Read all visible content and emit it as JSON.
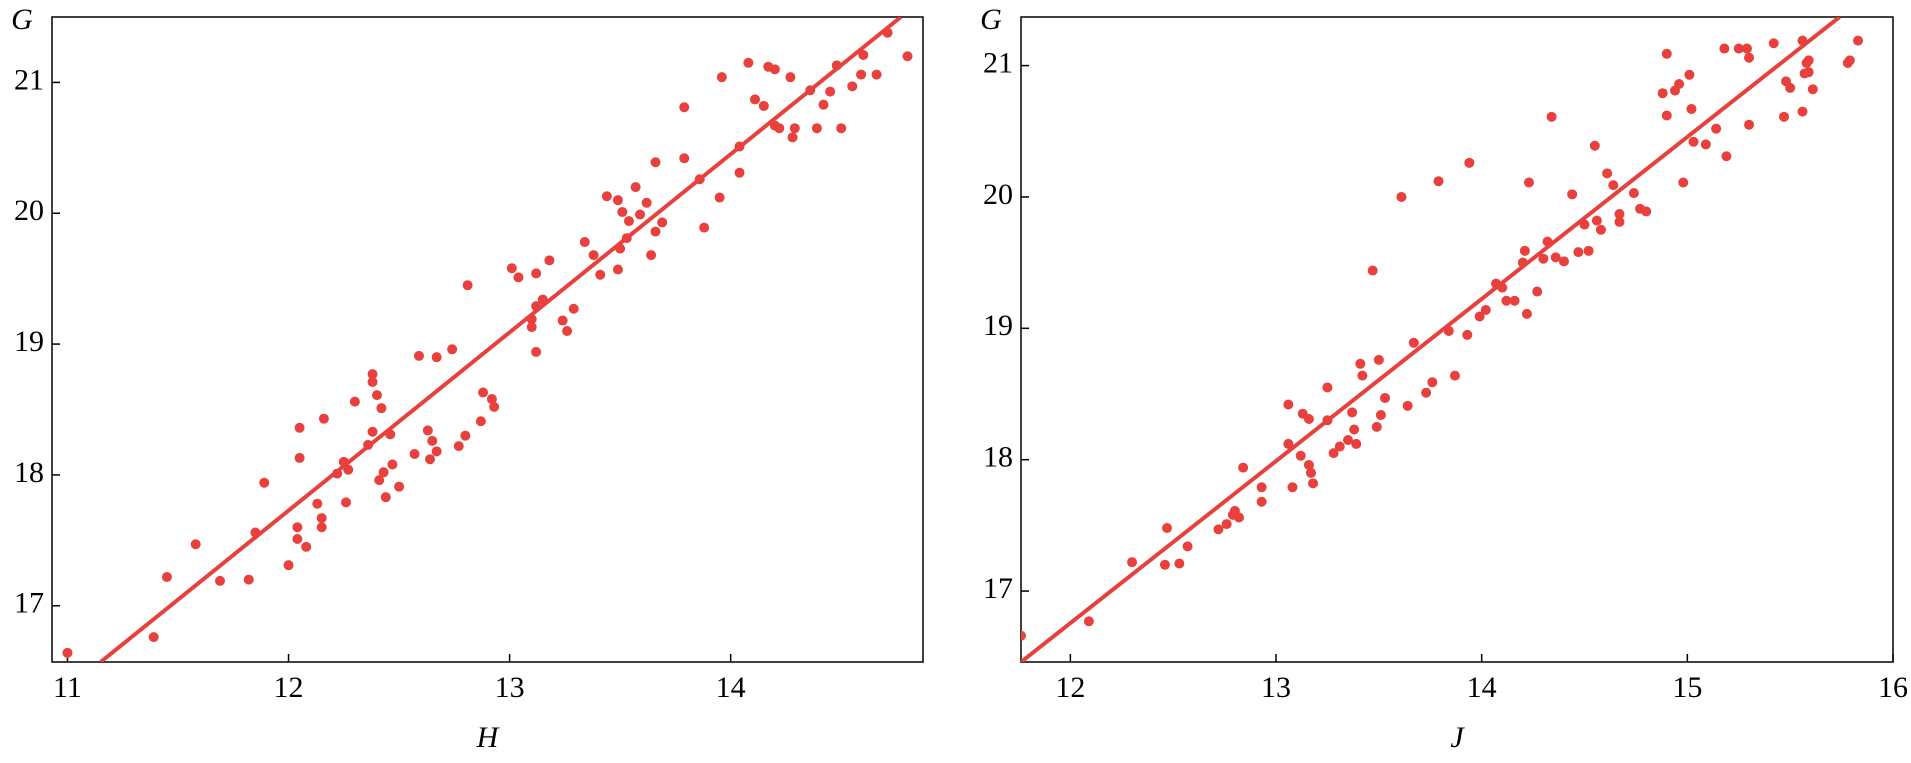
{
  "chart_data": [
    {
      "type": "scatter",
      "xlabel": "H",
      "ylabel": "G",
      "color": "#e8403c",
      "xlim": [
        10.93,
        14.87
      ],
      "ylim": [
        16.57,
        21.5
      ],
      "xticks": [
        11,
        12,
        13,
        14
      ],
      "yticks": [
        17,
        18,
        19,
        20,
        21
      ],
      "x": [
        11.0,
        11.39,
        11.45,
        11.58,
        11.69,
        11.82,
        11.85,
        11.89,
        12.0,
        12.04,
        12.04,
        12.05,
        12.05,
        12.08,
        12.13,
        12.15,
        12.15,
        12.16,
        12.22,
        12.25,
        12.26,
        12.27,
        12.3,
        12.36,
        12.38,
        12.38,
        12.38,
        12.4,
        12.41,
        12.42,
        12.43,
        12.44,
        12.46,
        12.47,
        12.5,
        12.57,
        12.59,
        12.63,
        12.64,
        12.65,
        12.67,
        12.67,
        12.74,
        12.77,
        12.8,
        12.81,
        12.87,
        12.88,
        12.92,
        12.93,
        13.01,
        13.04,
        13.1,
        13.1,
        13.12,
        13.12,
        13.12,
        13.15,
        13.18,
        13.24,
        13.26,
        13.29,
        13.34,
        13.38,
        13.41,
        13.44,
        13.49,
        13.49,
        13.5,
        13.51,
        13.53,
        13.54,
        13.57,
        13.59,
        13.62,
        13.64,
        13.66,
        13.66,
        13.69,
        13.79,
        13.79,
        13.86,
        13.88,
        13.95,
        13.96,
        14.04,
        14.04,
        14.08,
        14.11,
        14.15,
        14.17,
        14.2,
        14.2,
        14.22,
        14.27,
        14.28,
        14.29,
        14.36,
        14.39,
        14.42,
        14.45,
        14.48,
        14.5,
        14.55,
        14.59,
        14.6,
        14.66,
        14.71,
        14.8
      ],
      "values": [
        16.64,
        16.76,
        17.22,
        17.47,
        17.19,
        17.2,
        17.56,
        17.94,
        17.31,
        17.6,
        17.51,
        18.36,
        18.13,
        17.45,
        17.78,
        17.67,
        17.6,
        18.43,
        18.01,
        18.1,
        17.79,
        18.04,
        18.56,
        18.23,
        18.77,
        18.71,
        18.33,
        18.61,
        17.96,
        18.51,
        18.02,
        17.83,
        18.31,
        18.08,
        17.91,
        18.16,
        18.91,
        18.34,
        18.12,
        18.26,
        18.18,
        18.9,
        18.96,
        18.22,
        18.3,
        19.45,
        18.41,
        18.63,
        18.58,
        18.52,
        19.58,
        19.51,
        19.19,
        19.13,
        19.54,
        19.29,
        18.94,
        19.34,
        19.64,
        19.18,
        19.1,
        19.27,
        19.78,
        19.68,
        19.53,
        20.13,
        20.1,
        19.57,
        19.73,
        20.01,
        19.81,
        19.94,
        20.2,
        19.99,
        20.08,
        19.68,
        20.39,
        19.86,
        19.93,
        20.81,
        20.42,
        20.26,
        19.89,
        20.12,
        21.04,
        20.51,
        20.31,
        21.15,
        20.87,
        20.82,
        21.12,
        21.1,
        20.67,
        20.65,
        21.04,
        20.58,
        20.65,
        20.94,
        20.65,
        20.83,
        20.93,
        21.13,
        20.65,
        20.97,
        21.06,
        21.21,
        21.06,
        21.38,
        21.2
      ],
      "fit": {
        "x": [
          11.15,
          14.77
        ],
        "values": [
          16.57,
          21.5
        ]
      }
    },
    {
      "type": "scatter",
      "xlabel": "J",
      "ylabel": "G",
      "color": "#e8403c",
      "xlim": [
        11.76,
        16.0
      ],
      "ylim": [
        16.46,
        21.37
      ],
      "xticks": [
        12,
        13,
        14,
        15,
        16
      ],
      "yticks": [
        17,
        18,
        19,
        20,
        21
      ],
      "x": [
        11.76,
        12.09,
        12.3,
        12.46,
        12.47,
        12.53,
        12.57,
        12.72,
        12.76,
        12.79,
        12.8,
        12.82,
        12.84,
        12.93,
        12.93,
        13.06,
        13.06,
        13.08,
        13.12,
        13.13,
        13.16,
        13.16,
        13.17,
        13.18,
        13.25,
        13.25,
        13.28,
        13.31,
        13.35,
        13.37,
        13.38,
        13.39,
        13.41,
        13.42,
        13.47,
        13.49,
        13.5,
        13.51,
        13.53,
        13.61,
        13.64,
        13.67,
        13.73,
        13.76,
        13.79,
        13.84,
        13.87,
        13.93,
        13.94,
        13.99,
        14.02,
        14.07,
        14.1,
        14.12,
        14.16,
        14.2,
        14.21,
        14.22,
        14.23,
        14.27,
        14.3,
        14.32,
        14.34,
        14.36,
        14.4,
        14.44,
        14.47,
        14.5,
        14.52,
        14.55,
        14.56,
        14.58,
        14.61,
        14.64,
        14.67,
        14.67,
        14.74,
        14.77,
        14.8,
        14.88,
        14.9,
        14.9,
        14.94,
        14.96,
        14.98,
        15.01,
        15.02,
        15.03,
        15.09,
        15.14,
        15.18,
        15.19,
        15.25,
        15.29,
        15.3,
        15.3,
        15.42,
        15.47,
        15.48,
        15.5,
        15.56,
        15.56,
        15.57,
        15.58,
        15.59,
        15.59,
        15.61,
        15.78,
        15.79,
        15.83
      ],
      "values": [
        16.66,
        16.77,
        17.22,
        17.2,
        17.48,
        17.21,
        17.34,
        17.47,
        17.51,
        17.58,
        17.61,
        17.56,
        17.94,
        17.68,
        17.79,
        18.42,
        18.12,
        17.79,
        18.03,
        18.35,
        18.31,
        17.96,
        17.9,
        17.82,
        18.3,
        18.55,
        18.05,
        18.1,
        18.15,
        18.36,
        18.23,
        18.12,
        18.73,
        18.64,
        19.44,
        18.25,
        18.76,
        18.34,
        18.47,
        20.0,
        18.41,
        18.89,
        18.51,
        18.59,
        20.12,
        18.98,
        18.64,
        18.95,
        20.26,
        19.09,
        19.14,
        19.34,
        19.31,
        19.21,
        19.21,
        19.5,
        19.59,
        19.11,
        20.11,
        19.28,
        19.53,
        19.66,
        20.61,
        19.54,
        19.51,
        20.02,
        19.58,
        19.79,
        19.59,
        20.39,
        19.82,
        19.75,
        20.18,
        20.09,
        19.81,
        19.87,
        20.03,
        19.91,
        19.89,
        20.79,
        21.09,
        20.62,
        20.81,
        20.86,
        20.11,
        20.93,
        20.67,
        20.42,
        20.4,
        20.52,
        21.13,
        20.31,
        21.13,
        21.13,
        21.06,
        20.55,
        21.17,
        20.61,
        20.88,
        20.83,
        21.19,
        20.65,
        20.94,
        21.02,
        21.04,
        20.95,
        20.82,
        21.02,
        21.04,
        21.19
      ],
      "fit": {
        "x": [
          11.76,
          15.74
        ],
        "values": [
          16.46,
          21.37
        ]
      }
    }
  ]
}
